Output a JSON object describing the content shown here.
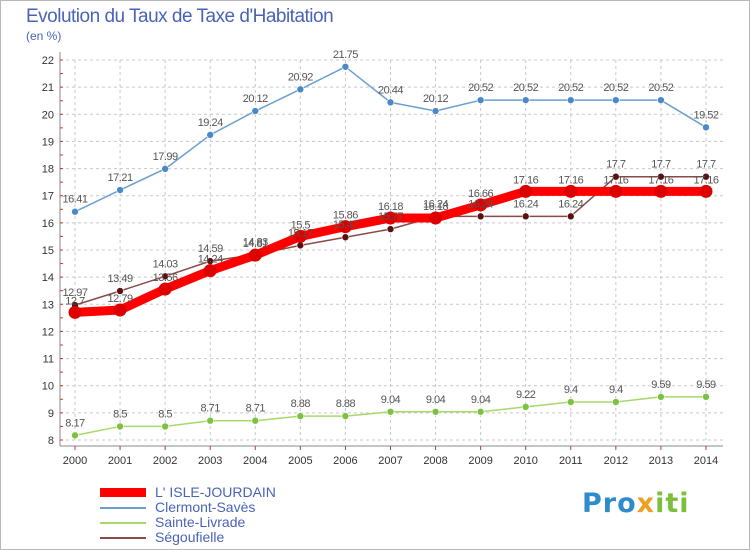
{
  "title": "Evolution du Taux de Taxe d'Habitation",
  "unit": "(en %)",
  "logo": {
    "p1": "Pro",
    "p2": "x",
    "p3": "iti"
  },
  "chart_data": {
    "type": "line",
    "x": [
      "2000",
      "2001",
      "2002",
      "2003",
      "2004",
      "2005",
      "2006",
      "2007",
      "2008",
      "2009",
      "2010",
      "2011",
      "2012",
      "2013",
      "2014"
    ],
    "ylim": [
      8,
      22
    ],
    "yticks": [
      "8",
      "9",
      "10",
      "11",
      "12",
      "13",
      "14",
      "15",
      "16",
      "17",
      "18",
      "19",
      "20",
      "21",
      "22"
    ],
    "grid": true,
    "legend_position": "bottom-left",
    "series": [
      {
        "name": "L' ISLE-JOURDAIN",
        "color": "#ff0000",
        "marker_color": "#dd0000",
        "values": [
          12.7,
          12.79,
          13.56,
          14.24,
          14.81,
          15.5,
          15.86,
          16.18,
          16.18,
          16.66,
          17.16,
          17.16,
          17.16,
          17.16,
          17.16
        ],
        "labels": [
          "12.7",
          "12.79",
          "13.56",
          "14.24",
          "14.81",
          "15.5",
          "15.86",
          "16.18",
          "16.18",
          "16.66",
          "17.16",
          "17.16",
          "17.16",
          "17.16",
          "17.16"
        ]
      },
      {
        "name": "Clermont-Savès",
        "color": "#6a9fd0",
        "marker_color": "#4a88c8",
        "values": [
          16.41,
          17.21,
          17.99,
          19.24,
          20.12,
          20.92,
          21.75,
          20.44,
          20.12,
          20.52,
          20.52,
          20.52,
          20.52,
          20.52,
          19.52
        ],
        "labels": [
          "16.41",
          "17.21",
          "17.99",
          "19.24",
          "20.12",
          "20.92",
          "21.75",
          "20.44",
          "20.12",
          "20.52",
          "20.52",
          "20.52",
          "20.52",
          "20.52",
          "19.52"
        ]
      },
      {
        "name": "Sainte-Livrade",
        "color": "#a6d96a",
        "marker_color": "#7cc241",
        "values": [
          8.17,
          8.5,
          8.5,
          8.71,
          8.71,
          8.88,
          8.88,
          9.04,
          9.04,
          9.04,
          9.22,
          9.4,
          9.4,
          9.59,
          9.59
        ],
        "labels": [
          "8.17",
          "8.5",
          "8.5",
          "8.71",
          "8.71",
          "8.88",
          "8.88",
          "9.04",
          "9.04",
          "9.04",
          "9.22",
          "9.4",
          "9.4",
          "9.59",
          "9.59"
        ]
      },
      {
        "name": "Ségoufielle",
        "color": "#8b4a4a",
        "marker_color": "#5a1010",
        "values": [
          12.97,
          13.49,
          14.03,
          14.59,
          14.83,
          15.17,
          15.47,
          15.77,
          16.24,
          16.24,
          16.24,
          16.24,
          17.7,
          17.7,
          17.7
        ],
        "labels": [
          "12.97",
          "13.49",
          "14.03",
          "14.59",
          "14.83",
          "15.17",
          "15.47",
          "15.77",
          "16.24",
          "16.24",
          "16.24",
          "16.24",
          "17.7",
          "17.7",
          "17.7"
        ]
      }
    ]
  }
}
